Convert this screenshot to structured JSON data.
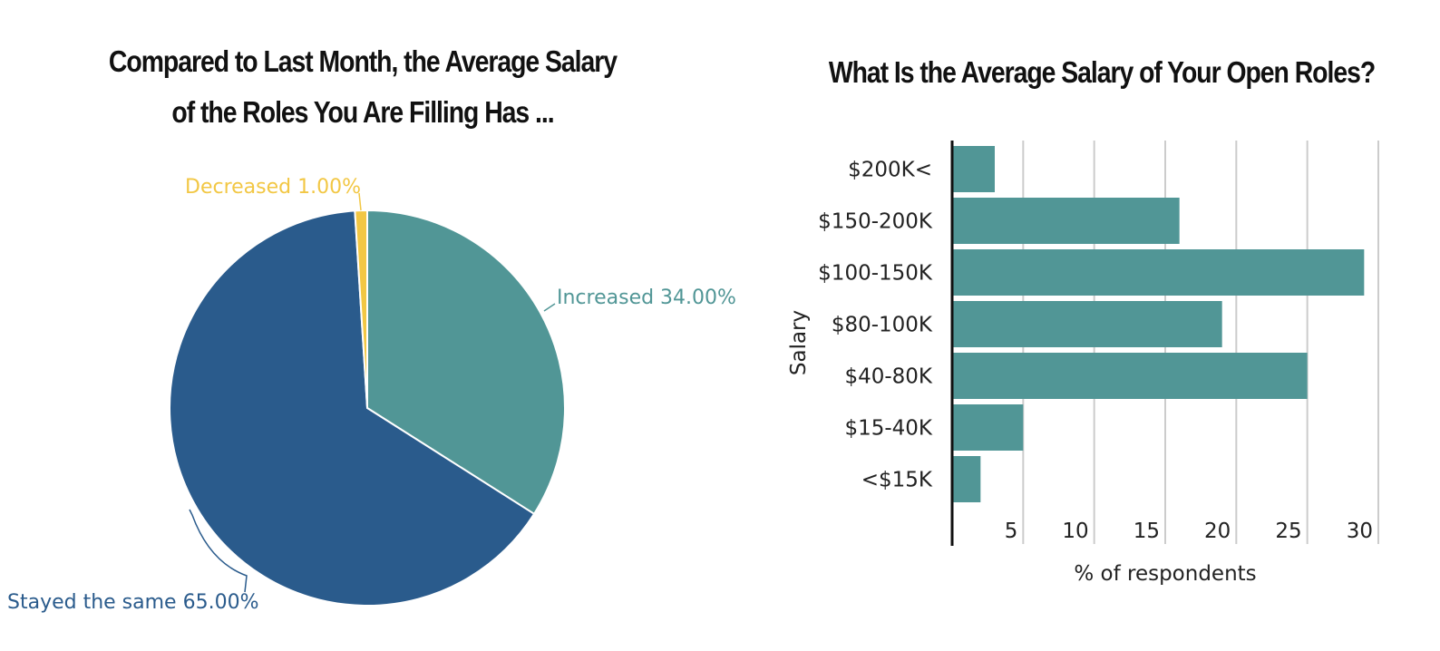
{
  "colors": {
    "increased": "#519696",
    "stayed": "#2a5b8c",
    "decreased": "#f2c744",
    "bar": "#519696",
    "grid": "#cccccc",
    "axis": "#111111",
    "text": "#222222"
  },
  "chart_data": [
    {
      "type": "pie",
      "title_lines": [
        "Compared to Last Month, the Average Salary",
        "of the Roles You Are Filling Has ..."
      ],
      "slices": [
        {
          "name": "Increased",
          "label": "Increased 34.00%",
          "value": 34.0,
          "color_key": "increased"
        },
        {
          "name": "Stayed the same",
          "label": "Stayed the same 65.00%",
          "value": 65.0,
          "color_key": "stayed"
        },
        {
          "name": "Decreased",
          "label": "Decreased 1.00%",
          "value": 1.0,
          "color_key": "decreased"
        }
      ]
    },
    {
      "type": "bar",
      "orientation": "horizontal",
      "title": "What Is the Average Salary of Your Open Roles?",
      "categories": [
        "$200K<",
        "$150-200K",
        "$100-150K",
        "$80-100K",
        "$40-80K",
        "$15-40K",
        "<$15K"
      ],
      "values": [
        3,
        16,
        29,
        19,
        25,
        5,
        2
      ],
      "xlabel": "% of respondents",
      "ylabel": "Salary",
      "xlim": [
        0,
        30
      ],
      "xticks": [
        5,
        10,
        15,
        20,
        25,
        30
      ],
      "grid": true
    }
  ]
}
